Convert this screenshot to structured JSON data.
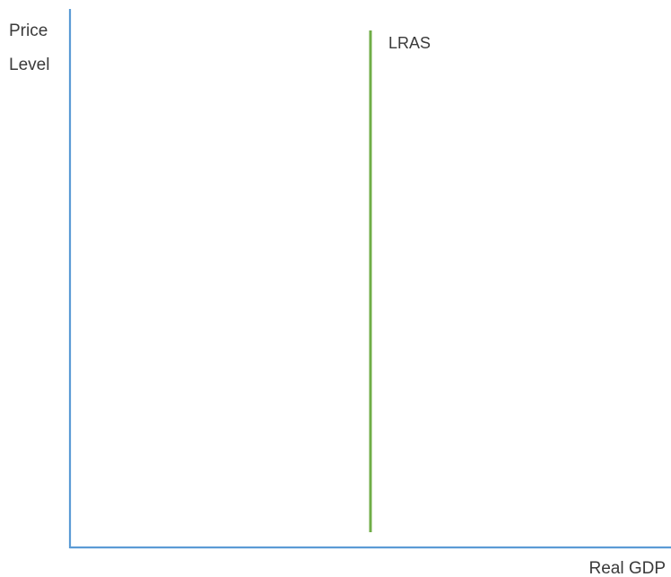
{
  "chart_data": {
    "type": "line",
    "title": "",
    "ylabel": [
      "Price",
      "Level"
    ],
    "xlabel": "Real GDP",
    "axis_color": "#5b9bd5",
    "series": [
      {
        "name": "LRAS",
        "color": "#70ad47",
        "x": [
          0.5,
          0.5
        ],
        "y": [
          0.0,
          1.0
        ]
      }
    ],
    "xlim": [
      0,
      1
    ],
    "ylim": [
      0,
      1
    ],
    "grid": false,
    "legend": "none"
  }
}
